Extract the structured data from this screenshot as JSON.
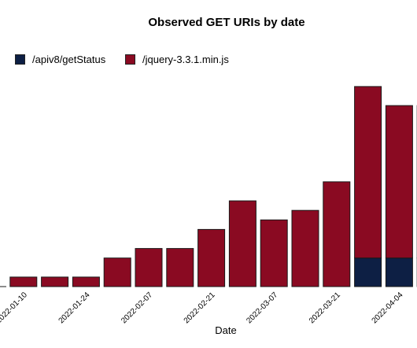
{
  "chart_data": {
    "type": "bar",
    "stacked": true,
    "title": "Observed GET URIs by date",
    "xlabel": "Date",
    "ylabel": "",
    "tick_labels": [
      "2022-01-10",
      "2022-01-24",
      "2022-02-07",
      "2022-02-21",
      "2022-03-07",
      "2022-03-21",
      "2022-04-04"
    ],
    "categories": [
      "2022-01-03",
      "2022-01-10",
      "2022-01-17",
      "2022-01-24",
      "2022-01-31",
      "2022-02-07",
      "2022-02-14",
      "2022-02-21",
      "2022-02-28",
      "2022-03-07",
      "2022-03-14",
      "2022-03-21",
      "2022-03-28",
      "2022-04-04",
      "2022-04-11"
    ],
    "series": [
      {
        "name": "/apiv8/getStatus",
        "color": "#0d1f44",
        "values": [
          0,
          0,
          0,
          0,
          0,
          0,
          0,
          0,
          0,
          0,
          0,
          0,
          3,
          3,
          3
        ]
      },
      {
        "name": "/jquery-3.3.1.min.js",
        "color": "#8a0a22",
        "values": [
          0,
          1,
          1,
          1,
          3,
          4,
          4,
          6,
          9,
          7,
          8,
          11,
          18,
          16,
          16
        ]
      }
    ],
    "ylim": [
      0,
      22
    ],
    "grid": false,
    "legend_position": "top-left"
  }
}
